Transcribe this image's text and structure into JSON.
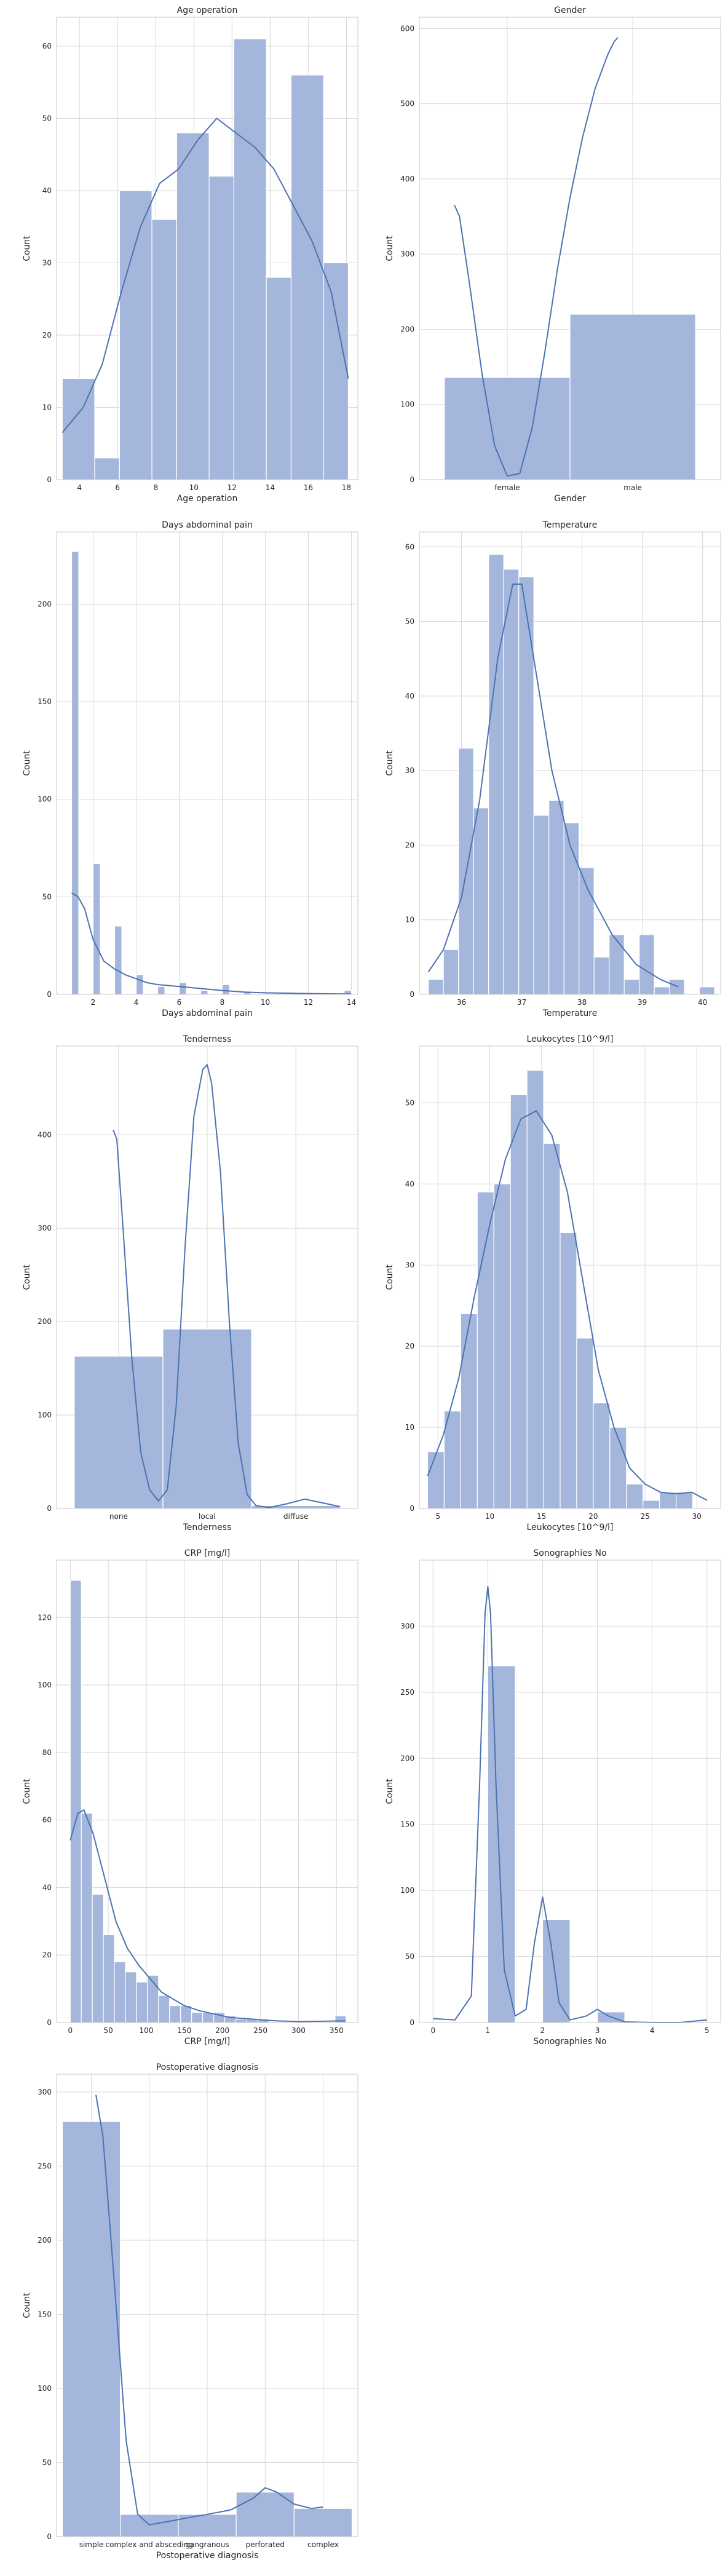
{
  "colors": {
    "bar_fill": "#a4b6db",
    "bar_edge": "#ffffff",
    "kde": "#4c72b0",
    "grid": "#d8d8d8",
    "frame": "#c8c8c8",
    "text": "#262626"
  },
  "chart_data": [
    {
      "type": "bar",
      "title": "Age operation",
      "xlabel": "Age operation",
      "ylabel": "Count",
      "xlim": [
        2.8,
        18.6
      ],
      "ylim": [
        0,
        64
      ],
      "xticks": [
        4,
        6,
        8,
        10,
        12,
        14,
        16,
        18
      ],
      "yticks": [
        0,
        10,
        20,
        30,
        40,
        50,
        60
      ],
      "bin_edges": [
        3.1,
        4.8,
        6.1,
        7.8,
        9.1,
        10.8,
        12.1,
        13.8,
        15.1,
        16.8,
        18.1
      ],
      "values": [
        14,
        3,
        40,
        36,
        48,
        42,
        61,
        28,
        56,
        30
      ],
      "kde": [
        [
          3.1,
          6.5
        ],
        [
          4.2,
          10
        ],
        [
          5.2,
          16
        ],
        [
          6.2,
          26
        ],
        [
          7.2,
          35
        ],
        [
          8.2,
          41
        ],
        [
          9.2,
          43
        ],
        [
          10.2,
          47
        ],
        [
          11.2,
          50
        ],
        [
          12.2,
          48
        ],
        [
          13.2,
          46
        ],
        [
          14.2,
          43
        ],
        [
          15.2,
          38
        ],
        [
          16.2,
          33
        ],
        [
          17.2,
          26
        ],
        [
          18.1,
          14
        ]
      ]
    },
    {
      "type": "bar",
      "title": "Gender",
      "xlabel": "Gender",
      "ylabel": "Count",
      "xlim": [
        -0.7,
        1.7
      ],
      "ylim": [
        0,
        615
      ],
      "categories": [
        "female",
        "male"
      ],
      "yticks": [
        0,
        100,
        200,
        300,
        400,
        500,
        600
      ],
      "values": [
        136,
        220
      ],
      "kde": [
        [
          -0.42,
          365
        ],
        [
          -0.38,
          350
        ],
        [
          -0.3,
          260
        ],
        [
          -0.2,
          140
        ],
        [
          -0.1,
          45
        ],
        [
          0.0,
          5
        ],
        [
          0.1,
          8
        ],
        [
          0.2,
          70
        ],
        [
          0.3,
          170
        ],
        [
          0.4,
          280
        ],
        [
          0.5,
          375
        ],
        [
          0.6,
          455
        ],
        [
          0.7,
          520
        ],
        [
          0.8,
          565
        ],
        [
          0.85,
          582
        ],
        [
          0.88,
          588
        ]
      ]
    },
    {
      "type": "bar",
      "title": "Days abdominal pain",
      "xlabel": "Days abdominal pain",
      "ylabel": "Count",
      "xlim": [
        0.3,
        14.3
      ],
      "ylim": [
        0,
        237
      ],
      "xticks": [
        2,
        4,
        6,
        8,
        10,
        12,
        14
      ],
      "yticks": [
        0,
        50,
        100,
        150,
        200
      ],
      "bin_edges": [
        1,
        1.33,
        1.67,
        2,
        2.33,
        2.67,
        3,
        3.33,
        3.67,
        4,
        4.33,
        4.67,
        5,
        5.33,
        5.67,
        6,
        6.33,
        6.67,
        7,
        7.33,
        7.67,
        8,
        8.33,
        8.67,
        9,
        9.33,
        9.67,
        10,
        10.33,
        10.67,
        11,
        11.33,
        11.67,
        12,
        12.33,
        12.67,
        13,
        13.33,
        13.67,
        14
      ],
      "values": [
        227,
        0,
        0,
        67,
        0,
        0,
        35,
        0,
        0,
        10,
        0,
        0,
        4,
        0,
        0,
        6,
        0,
        0,
        2,
        0,
        0,
        5,
        0,
        0,
        1,
        0,
        0,
        0,
        0,
        0,
        0,
        0,
        0,
        0,
        0,
        0,
        0,
        0,
        2
      ],
      "kde": [
        [
          1,
          52
        ],
        [
          1.3,
          50
        ],
        [
          1.6,
          44
        ],
        [
          2,
          28
        ],
        [
          2.5,
          17
        ],
        [
          3,
          13
        ],
        [
          3.5,
          10
        ],
        [
          4,
          8
        ],
        [
          4.5,
          6
        ],
        [
          5,
          5
        ],
        [
          6,
          4
        ],
        [
          7,
          3
        ],
        [
          8,
          2
        ],
        [
          9,
          1.2
        ],
        [
          10,
          0.8
        ],
        [
          12,
          0.4
        ],
        [
          14,
          0.2
        ]
      ]
    },
    {
      "type": "bar",
      "title": "Temperature",
      "xlabel": "Temperature",
      "ylabel": "Count",
      "xlim": [
        35.3,
        40.3
      ],
      "ylim": [
        0,
        62
      ],
      "xticks": [
        36,
        37,
        38,
        39,
        40
      ],
      "yticks": [
        0,
        10,
        20,
        30,
        40,
        50,
        60
      ],
      "bin_edges": [
        35.45,
        35.7,
        35.95,
        36.2,
        36.45,
        36.7,
        36.95,
        37.2,
        37.45,
        37.7,
        37.95,
        38.2,
        38.45,
        38.7,
        38.95,
        39.2,
        39.45,
        39.7,
        39.95,
        40.2
      ],
      "values": [
        2,
        6,
        33,
        25,
        59,
        57,
        56,
        24,
        26,
        23,
        17,
        5,
        8,
        2,
        8,
        1,
        2,
        0,
        1
      ],
      "kde": [
        [
          35.45,
          3
        ],
        [
          35.7,
          6
        ],
        [
          36.0,
          13
        ],
        [
          36.3,
          26
        ],
        [
          36.6,
          45
        ],
        [
          36.85,
          55
        ],
        [
          37.0,
          55
        ],
        [
          37.2,
          45
        ],
        [
          37.5,
          30
        ],
        [
          37.8,
          20
        ],
        [
          38.1,
          14
        ],
        [
          38.5,
          8
        ],
        [
          38.9,
          4
        ],
        [
          39.3,
          2
        ],
        [
          39.6,
          1
        ]
      ]
    },
    {
      "type": "bar",
      "title": "Tenderness",
      "xlabel": "Tenderness",
      "ylabel": "Count",
      "xlim": [
        -0.7,
        2.7
      ],
      "ylim": [
        0,
        495
      ],
      "categories": [
        "none",
        "local",
        "diffuse"
      ],
      "yticks": [
        0,
        100,
        200,
        300,
        400
      ],
      "values": [
        163,
        192,
        3
      ],
      "kde": [
        [
          -0.06,
          405
        ],
        [
          -0.02,
          395
        ],
        [
          0.05,
          300
        ],
        [
          0.15,
          160
        ],
        [
          0.25,
          60
        ],
        [
          0.35,
          20
        ],
        [
          0.45,
          8
        ],
        [
          0.55,
          20
        ],
        [
          0.65,
          110
        ],
        [
          0.75,
          280
        ],
        [
          0.85,
          420
        ],
        [
          0.95,
          470
        ],
        [
          1.0,
          475
        ],
        [
          1.05,
          455
        ],
        [
          1.15,
          360
        ],
        [
          1.25,
          200
        ],
        [
          1.35,
          70
        ],
        [
          1.45,
          15
        ],
        [
          1.55,
          3
        ],
        [
          1.7,
          1
        ],
        [
          1.9,
          5
        ],
        [
          2.1,
          10
        ],
        [
          2.3,
          6
        ],
        [
          2.5,
          2
        ]
      ]
    },
    {
      "type": "bar",
      "title": "Leukocytes [10^9/l]",
      "xlabel": "Leukocytes [10^9/l]",
      "ylabel": "Count",
      "xlim": [
        3.2,
        32.3
      ],
      "ylim": [
        0,
        57
      ],
      "xticks": [
        5,
        10,
        15,
        20,
        25,
        30
      ],
      "yticks": [
        0,
        10,
        20,
        30,
        40,
        50
      ],
      "bin_edges": [
        4,
        5.6,
        7.2,
        8.8,
        10.4,
        12,
        13.6,
        15.2,
        16.8,
        18.4,
        20,
        21.6,
        23.2,
        24.8,
        26.4,
        28,
        29.6,
        31.2
      ],
      "values": [
        7,
        12,
        24,
        39,
        40,
        51,
        54,
        45,
        34,
        21,
        13,
        10,
        3,
        1,
        2,
        2,
        0
      ],
      "kde": [
        [
          4,
          4
        ],
        [
          5.5,
          9
        ],
        [
          7,
          16
        ],
        [
          8.5,
          26
        ],
        [
          10,
          35
        ],
        [
          11.5,
          43
        ],
        [
          13,
          48
        ],
        [
          14.5,
          49
        ],
        [
          16,
          46
        ],
        [
          17.5,
          39
        ],
        [
          19,
          28
        ],
        [
          20.5,
          17
        ],
        [
          22,
          10
        ],
        [
          23.5,
          5
        ],
        [
          25,
          3
        ],
        [
          26.5,
          2
        ],
        [
          28,
          1.8
        ],
        [
          29.5,
          2
        ],
        [
          31,
          1
        ]
      ]
    },
    {
      "type": "bar",
      "title": "CRP [mg/l]",
      "xlabel": "CRP [mg/l]",
      "ylabel": "Count",
      "xlim": [
        -18,
        378
      ],
      "ylim": [
        0,
        137
      ],
      "xticks": [
        0,
        50,
        100,
        150,
        200,
        250,
        300,
        350
      ],
      "yticks": [
        0,
        20,
        40,
        60,
        80,
        100,
        120
      ],
      "bin_edges": [
        0,
        14.5,
        29,
        43.5,
        58,
        72.5,
        87,
        101.5,
        116,
        130.5,
        145,
        159.5,
        174,
        188.5,
        203,
        217.5,
        232,
        246.5,
        261,
        275.5,
        290,
        304.5,
        319,
        333.5,
        348,
        362.5
      ],
      "values": [
        131,
        62,
        38,
        26,
        18,
        15,
        12,
        14,
        8,
        5,
        5,
        3,
        3,
        3,
        2,
        1,
        1,
        1,
        0,
        0,
        0,
        0,
        0,
        0,
        2
      ],
      "kde": [
        [
          0,
          54
        ],
        [
          10,
          62
        ],
        [
          18,
          63
        ],
        [
          30,
          56
        ],
        [
          45,
          43
        ],
        [
          60,
          30
        ],
        [
          75,
          22
        ],
        [
          90,
          17
        ],
        [
          105,
          13
        ],
        [
          120,
          9
        ],
        [
          135,
          7
        ],
        [
          150,
          5
        ],
        [
          170,
          3.5
        ],
        [
          190,
          2.5
        ],
        [
          210,
          1.5
        ],
        [
          240,
          1
        ],
        [
          270,
          0.5
        ],
        [
          300,
          0.3
        ],
        [
          362,
          0.5
        ]
      ]
    },
    {
      "type": "bar",
      "title": "Sonographies No",
      "xlabel": "Sonographies No",
      "ylabel": "Count",
      "xlim": [
        -0.25,
        5.25
      ],
      "ylim": [
        0,
        350
      ],
      "xticks": [
        0,
        1,
        2,
        3,
        4,
        5
      ],
      "yticks": [
        0,
        50,
        100,
        150,
        200,
        250,
        300
      ],
      "bin_edges": [
        0,
        0.5,
        1,
        1.5,
        2,
        2.5,
        3,
        3.5,
        4,
        4.5,
        5
      ],
      "values": [
        0,
        0,
        270,
        0,
        78,
        0,
        8,
        0,
        0,
        0
      ],
      "kde": [
        [
          0,
          3
        ],
        [
          0.4,
          2
        ],
        [
          0.7,
          20
        ],
        [
          0.85,
          180
        ],
        [
          0.95,
          310
        ],
        [
          1.0,
          330
        ],
        [
          1.05,
          310
        ],
        [
          1.15,
          180
        ],
        [
          1.3,
          40
        ],
        [
          1.5,
          5
        ],
        [
          1.7,
          10
        ],
        [
          1.85,
          60
        ],
        [
          2.0,
          95
        ],
        [
          2.15,
          60
        ],
        [
          2.3,
          15
        ],
        [
          2.5,
          2
        ],
        [
          2.8,
          5
        ],
        [
          3.0,
          10
        ],
        [
          3.2,
          5
        ],
        [
          3.5,
          0.5
        ],
        [
          4,
          0
        ],
        [
          4.5,
          0
        ],
        [
          5,
          2
        ]
      ]
    },
    {
      "type": "bar",
      "title": "Postoperative diagnosis",
      "xlabel": "Postoperative diagnosis",
      "ylabel": "Count",
      "xlim": [
        -0.6,
        4.6
      ],
      "ylim": [
        0,
        312
      ],
      "categories": [
        "simple",
        "complex and absceding",
        "gangranous",
        "perforated",
        "complex"
      ],
      "yticks": [
        0,
        50,
        100,
        150,
        200,
        250,
        300
      ],
      "values": [
        280,
        15,
        15,
        30,
        19
      ],
      "kde": [
        [
          0.08,
          298
        ],
        [
          0.2,
          270
        ],
        [
          0.4,
          170
        ],
        [
          0.6,
          65
        ],
        [
          0.8,
          15
        ],
        [
          1.0,
          8
        ],
        [
          1.3,
          10
        ],
        [
          1.7,
          13
        ],
        [
          2.0,
          15
        ],
        [
          2.4,
          18
        ],
        [
          2.8,
          26
        ],
        [
          3.0,
          33
        ],
        [
          3.2,
          30
        ],
        [
          3.5,
          22
        ],
        [
          3.8,
          19
        ],
        [
          4.0,
          20
        ]
      ]
    }
  ]
}
